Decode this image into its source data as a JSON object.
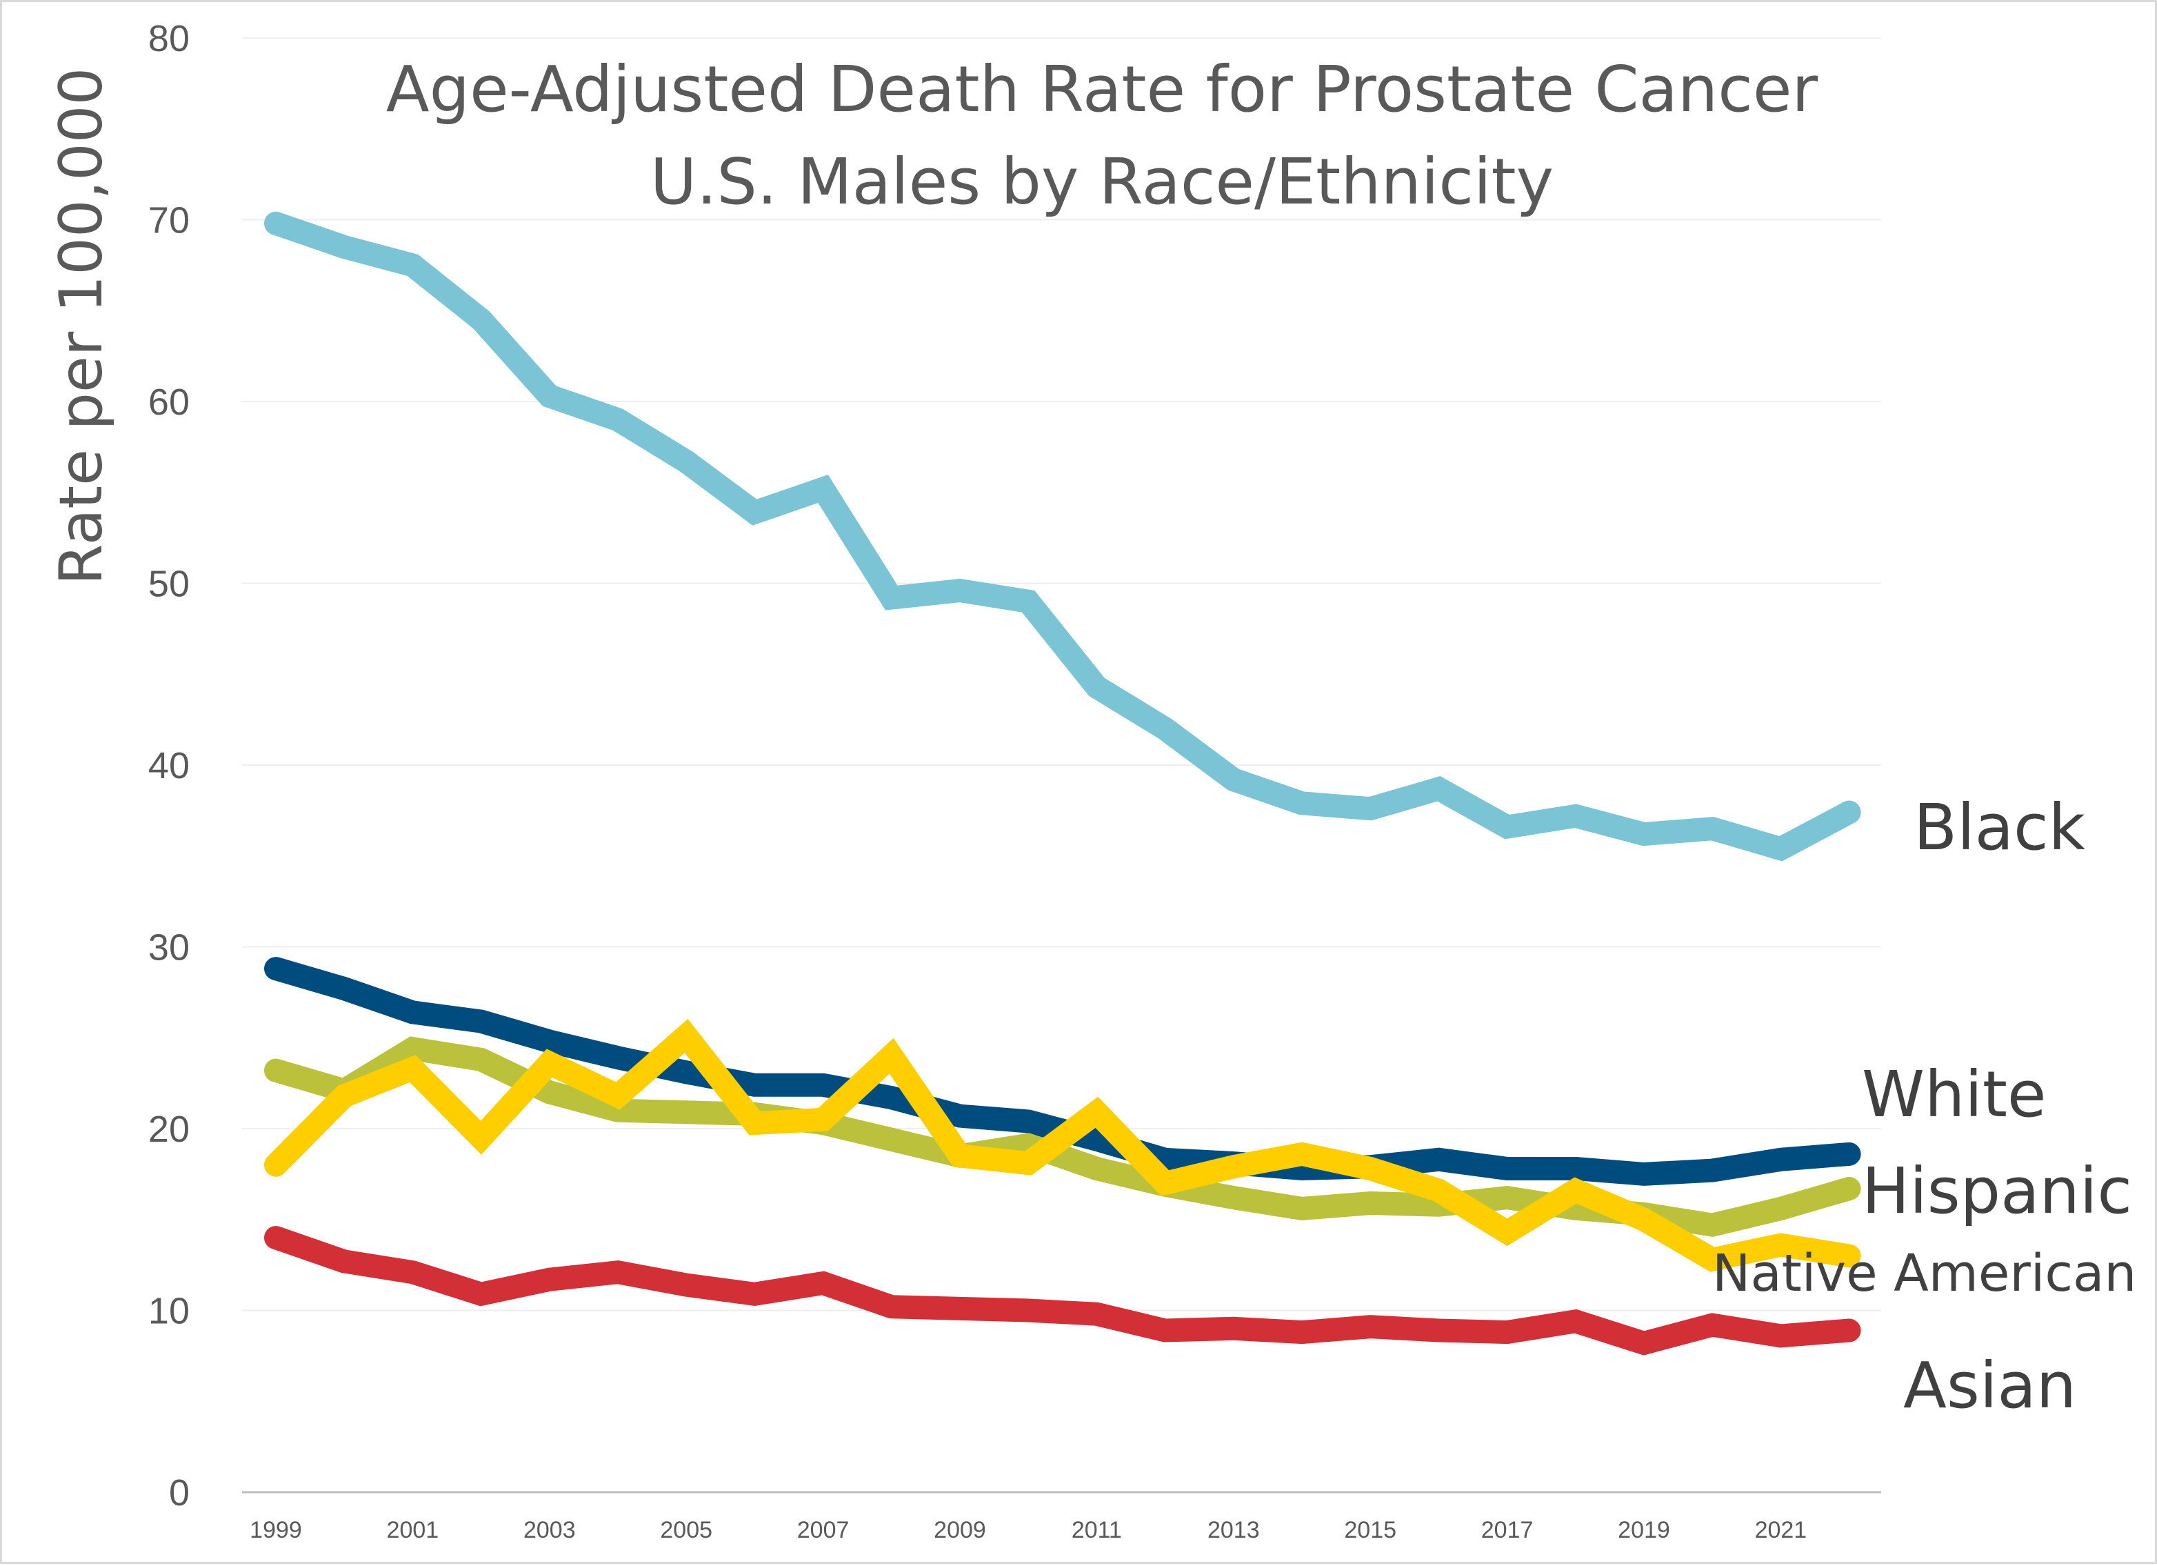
{
  "chart_data": {
    "type": "line",
    "title": "Age-Adjusted Death Rate for Prostate Cancer",
    "subtitle": "U.S. Males by Race/Ethnicity",
    "xlabel": "",
    "ylabel": "Rate per 100,000",
    "ylim": [
      0,
      80
    ],
    "yticks": [
      "0",
      "10",
      "20",
      "30",
      "40",
      "50",
      "60",
      "70",
      "80"
    ],
    "xticks": [
      "1999",
      "2001",
      "2003",
      "2005",
      "2007",
      "2009",
      "2011",
      "2013",
      "2015",
      "2017",
      "2019",
      "2021"
    ],
    "grid": "horizontal",
    "legend": "direct labels at right end of lines",
    "x": [
      1999,
      2000,
      2001,
      2002,
      2003,
      2004,
      2005,
      2006,
      2007,
      2008,
      2009,
      2010,
      2011,
      2012,
      2013,
      2014,
      2015,
      2016,
      2017,
      2018,
      2019,
      2020,
      2021,
      2022
    ],
    "series": [
      {
        "name": "Black",
        "color": "#7ac4d6",
        "values": [
          69.8,
          68.5,
          67.5,
          64.5,
          60.3,
          59.0,
          56.7,
          53.9,
          55.2,
          49.2,
          49.6,
          49.0,
          44.3,
          42.0,
          39.2,
          37.9,
          37.6,
          38.7,
          36.6,
          37.2,
          36.2,
          36.5,
          35.4,
          37.4
        ]
      },
      {
        "name": "White",
        "color": "#004c7f",
        "values": [
          28.8,
          27.7,
          26.4,
          25.9,
          24.8,
          23.9,
          23.1,
          22.4,
          22.4,
          21.7,
          20.7,
          20.4,
          19.4,
          18.3,
          18.1,
          17.8,
          17.9,
          18.3,
          17.8,
          17.8,
          17.5,
          17.7,
          18.3,
          18.6
        ]
      },
      {
        "name": "Hispanic",
        "color": "#bbc13a",
        "values": [
          23.2,
          22.1,
          24.4,
          23.8,
          22.0,
          21.0,
          20.9,
          20.8,
          20.3,
          19.4,
          18.5,
          19.1,
          17.8,
          16.9,
          16.2,
          15.6,
          15.9,
          15.8,
          16.2,
          15.6,
          15.3,
          14.7,
          15.6,
          16.7
        ]
      },
      {
        "name": "Native American",
        "color": "#fece00",
        "values": [
          18.0,
          21.8,
          23.3,
          19.5,
          23.6,
          21.8,
          25.1,
          20.3,
          20.5,
          24.0,
          18.5,
          18.1,
          20.9,
          17.0,
          17.9,
          18.6,
          17.8,
          16.6,
          14.3,
          16.6,
          15.0,
          12.8,
          13.6,
          13.0
        ]
      },
      {
        "name": "Asian",
        "color": "#d22f36",
        "values": [
          14.0,
          12.7,
          12.1,
          10.9,
          11.7,
          12.1,
          11.4,
          10.9,
          11.5,
          10.2,
          10.1,
          10.0,
          9.8,
          8.9,
          9.0,
          8.8,
          9.1,
          8.9,
          8.8,
          9.4,
          8.2,
          9.2,
          8.6,
          8.9
        ]
      }
    ]
  }
}
